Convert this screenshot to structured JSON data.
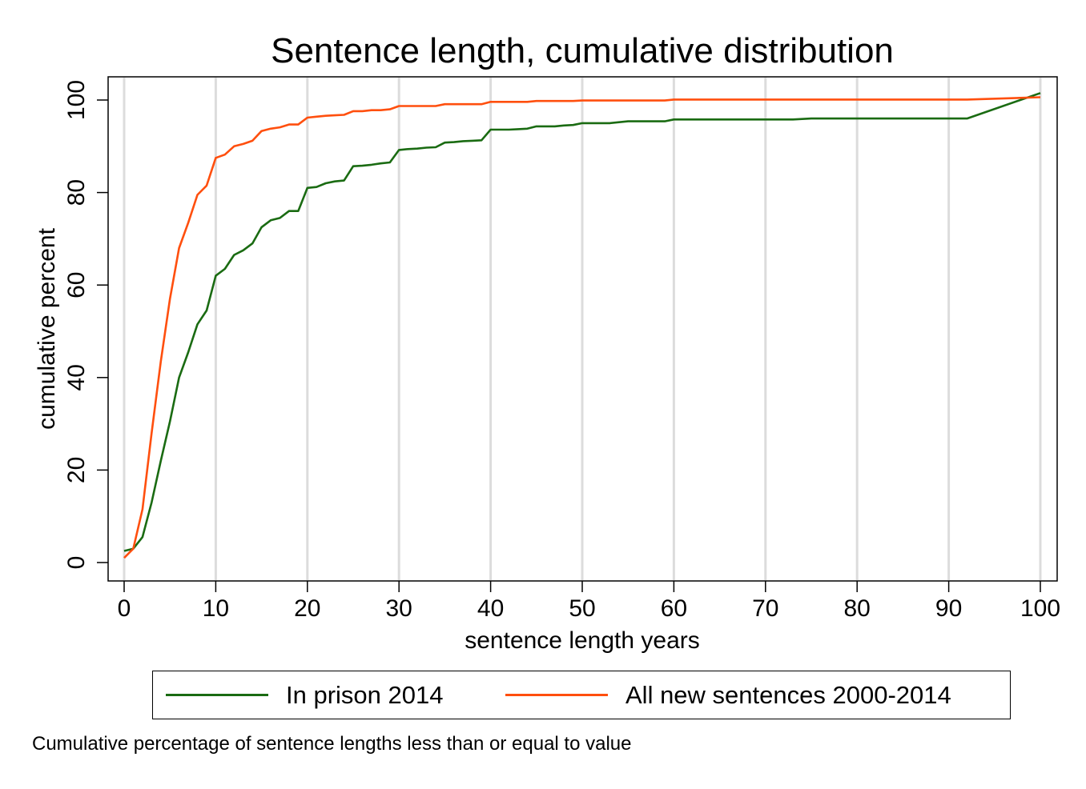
{
  "chart_data": {
    "type": "line",
    "title": "Sentence length, cumulative distribution",
    "xlabel": "sentence length years",
    "ylabel": "cumulative percent",
    "xlim": [
      0,
      100
    ],
    "ylim": [
      0,
      100
    ],
    "xticks": [
      0,
      10,
      20,
      30,
      40,
      50,
      60,
      70,
      80,
      90,
      100
    ],
    "yticks": [
      0,
      20,
      40,
      60,
      80,
      100
    ],
    "grid": "vertical",
    "legend_position": "bottom",
    "series": [
      {
        "name": "In prison 2014",
        "color": "#1a6b12",
        "points": [
          [
            0,
            2.5
          ],
          [
            1,
            3
          ],
          [
            2,
            5.5
          ],
          [
            3,
            13
          ],
          [
            4,
            22
          ],
          [
            5,
            30.5
          ],
          [
            6,
            40
          ],
          [
            7,
            45.5
          ],
          [
            8,
            51.5
          ],
          [
            9,
            54.5
          ],
          [
            10,
            62
          ],
          [
            11,
            63.5
          ],
          [
            12,
            66.5
          ],
          [
            13,
            67.5
          ],
          [
            14,
            69
          ],
          [
            15,
            72.5
          ],
          [
            16,
            74
          ],
          [
            17,
            74.5
          ],
          [
            18,
            76
          ],
          [
            19,
            76
          ],
          [
            20,
            81
          ],
          [
            21,
            81.2
          ],
          [
            22,
            82
          ],
          [
            23,
            82.4
          ],
          [
            24,
            82.6
          ],
          [
            25,
            85.7
          ],
          [
            26,
            85.8
          ],
          [
            27,
            86
          ],
          [
            28,
            86.3
          ],
          [
            29,
            86.5
          ],
          [
            30,
            89.2
          ],
          [
            31,
            89.4
          ],
          [
            32,
            89.5
          ],
          [
            33,
            89.7
          ],
          [
            34,
            89.8
          ],
          [
            35,
            90.8
          ],
          [
            36,
            90.9
          ],
          [
            37,
            91.1
          ],
          [
            38,
            91.2
          ],
          [
            39,
            91.3
          ],
          [
            40,
            93.6
          ],
          [
            42,
            93.6
          ],
          [
            43,
            93.7
          ],
          [
            44,
            93.8
          ],
          [
            45,
            94.3
          ],
          [
            47,
            94.3
          ],
          [
            48,
            94.5
          ],
          [
            49,
            94.6
          ],
          [
            50,
            95
          ],
          [
            53,
            95
          ],
          [
            55,
            95.4
          ],
          [
            59,
            95.4
          ],
          [
            60,
            95.8
          ],
          [
            73,
            95.8
          ],
          [
            75,
            96
          ],
          [
            92,
            96
          ],
          [
            100,
            101.5
          ]
        ]
      },
      {
        "name": "All new sentences 2000-2014",
        "color": "#ff4f0e",
        "points": [
          [
            0,
            1
          ],
          [
            1,
            3
          ],
          [
            2,
            11.5
          ],
          [
            3,
            28
          ],
          [
            4,
            43.5
          ],
          [
            5,
            57
          ],
          [
            6,
            68
          ],
          [
            7,
            73.5
          ],
          [
            8,
            79.5
          ],
          [
            9,
            81.5
          ],
          [
            10,
            87.5
          ],
          [
            11,
            88.2
          ],
          [
            12,
            90
          ],
          [
            13,
            90.5
          ],
          [
            14,
            91.2
          ],
          [
            15,
            93.3
          ],
          [
            16,
            93.8
          ],
          [
            17,
            94.1
          ],
          [
            18,
            94.7
          ],
          [
            19,
            94.7
          ],
          [
            20,
            96.2
          ],
          [
            21,
            96.4
          ],
          [
            22,
            96.6
          ],
          [
            23,
            96.7
          ],
          [
            24,
            96.8
          ],
          [
            25,
            97.6
          ],
          [
            26,
            97.6
          ],
          [
            27,
            97.8
          ],
          [
            28,
            97.8
          ],
          [
            29,
            98
          ],
          [
            30,
            98.7
          ],
          [
            34,
            98.7
          ],
          [
            35,
            99.1
          ],
          [
            39,
            99.1
          ],
          [
            40,
            99.6
          ],
          [
            44,
            99.6
          ],
          [
            45,
            99.8
          ],
          [
            49,
            99.8
          ],
          [
            50,
            99.9
          ],
          [
            59,
            99.9
          ],
          [
            60,
            100.1
          ],
          [
            92,
            100.1
          ],
          [
            100,
            100.6
          ]
        ]
      }
    ]
  },
  "legend": {
    "items": [
      {
        "label": "In prison 2014",
        "color": "#1a6b12"
      },
      {
        "label": "All new sentences 2000-2014",
        "color": "#ff4f0e"
      }
    ]
  },
  "caption": "Cumulative percentage of sentence lengths less than or equal to value"
}
